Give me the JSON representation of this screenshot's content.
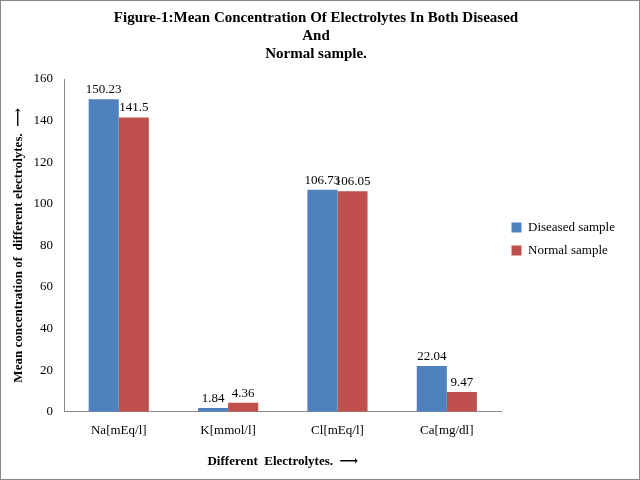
{
  "chart_data": {
    "type": "bar",
    "title": [
      "Figure-1:Mean Concentration Of Electrolytes In Both Diseased",
      "And",
      "Normal sample."
    ],
    "x_label": "Different  Electrolytes.  ⟶",
    "y_label": "Mean concentration of  different electrolytes.  ⟶",
    "categories": [
      "Na[mEq/l]",
      "K[mmol/l]",
      "Cl[mEq/l]",
      "Ca[mg/dl]"
    ],
    "series": [
      {
        "name": "Diseased sample",
        "color": "#4f81bd",
        "values": [
          150.23,
          1.84,
          106.73,
          22.04
        ]
      },
      {
        "name": "Normal sample",
        "color": "#c0504d",
        "values": [
          141.5,
          4.36,
          106.05,
          9.47
        ]
      }
    ],
    "ylim": [
      0,
      160
    ],
    "yticks": [
      0,
      20,
      40,
      60,
      80,
      100,
      120,
      140,
      160
    ],
    "grid": false,
    "legend": "right",
    "data_labels": true
  }
}
